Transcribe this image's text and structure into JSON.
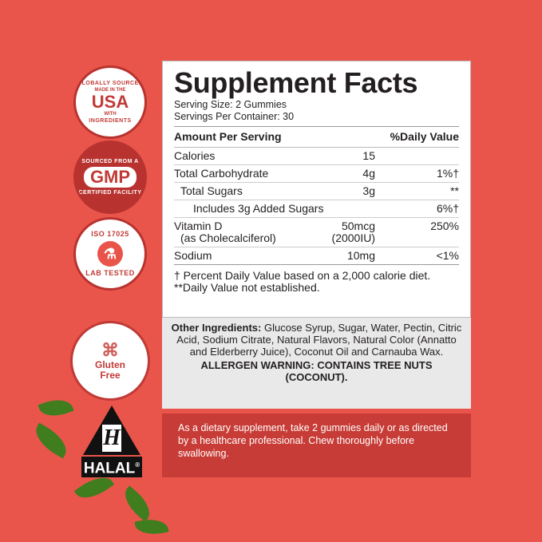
{
  "badges": [
    {
      "top": "GLOBALLY SOURCED",
      "line1": "MADE IN THE",
      "main": "USA",
      "line2": "WITH",
      "bottom": "INGREDIENTS"
    },
    {
      "top": "SOURCED FROM A",
      "main": "GMP",
      "bottom": "CERTIFIED FACILITY"
    },
    {
      "top": "ISO 17025",
      "bottom": "LAB TESTED",
      "icon": "flask-check-icon"
    },
    {
      "main": "Gluten Free",
      "icon": "wheat-icon"
    }
  ],
  "halal": {
    "letter": "H",
    "label": "HALAL",
    "mark": "®"
  },
  "facts": {
    "title": "Supplement Facts",
    "serving_size": "Serving Size: 2 Gummies",
    "servings": "Servings Per Container: 30",
    "amount_header": "Amount Per Serving",
    "dv_header": "%Daily Value",
    "rows": [
      {
        "name": "Calories",
        "amount": "15",
        "dv": ""
      },
      {
        "name": "Total Carbohydrate",
        "amount": "4g",
        "dv": "1%†"
      },
      {
        "name": "Total Sugars",
        "amount": "3g",
        "dv": "**"
      },
      {
        "name": "Includes 3g Added Sugars",
        "amount": "",
        "dv": "6%†"
      },
      {
        "name": "Vitamin D",
        "sub": "(as Cholecalciferol)",
        "amount": "50mcg",
        "amount2": "(2000IU)",
        "dv": "250%"
      },
      {
        "name": "Sodium",
        "amount": "10mg",
        "dv": "<1%"
      }
    ],
    "foot1": "† Percent Daily Value based on a 2,000 calorie diet.",
    "foot2": "**Daily Value not established."
  },
  "other": {
    "label": "Other Ingredients:",
    "text": " Glucose Syrup, Sugar, Water, Pectin, Citric Acid, Sodium Citrate, Natural Flavors, Natural Color (Annatto and Elderberry Juice), Coconut Oil and Carnauba Wax.",
    "allergen": "ALLERGEN WARNING:  CONTAINS TREE NUTS (COCONUT)."
  },
  "directions": "As a dietary supplement, take 2 gummies daily or as directed by a healthcare professional. Chew thoroughly before swallowing."
}
